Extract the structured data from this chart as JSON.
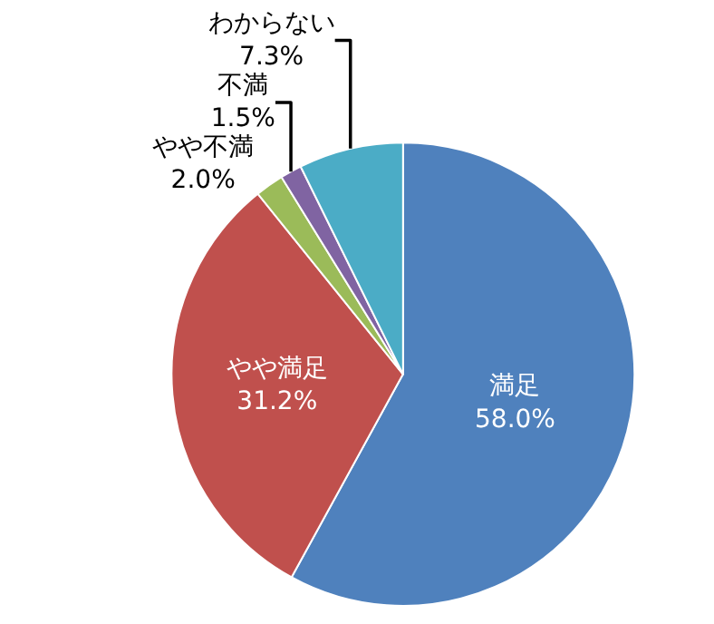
{
  "chart_data": {
    "type": "pie",
    "categories": [
      "満足",
      "やや満足",
      "やや不満",
      "不満",
      "わからない"
    ],
    "values": [
      58.0,
      31.2,
      2.0,
      1.5,
      7.3
    ],
    "value_labels": [
      "58.0%",
      "31.2%",
      "2.0%",
      "1.5%",
      "7.3%"
    ],
    "colors": [
      "#4f81bd",
      "#c0504d",
      "#9bbb59",
      "#8064a2",
      "#4bacc6"
    ],
    "legend": false
  }
}
